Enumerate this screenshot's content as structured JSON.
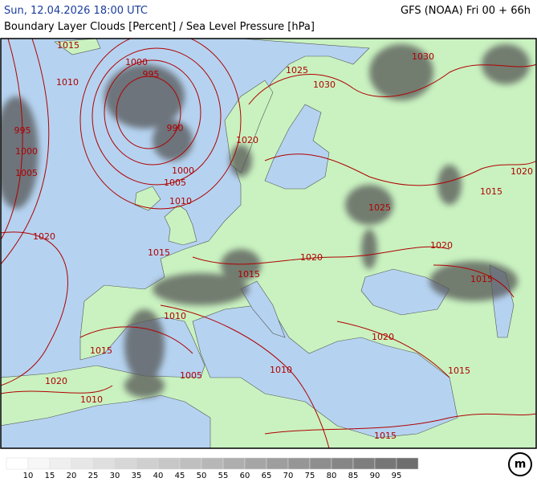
{
  "header": {
    "time": "Sun, 12.04.2026 18:00 UTC",
    "model": "GFS (NOAA) Fri 00 + 66h",
    "subtitle": "Boundary Layer Clouds [Percent] / Sea Level Pressure [hPa]"
  },
  "isobar_labels": [
    "1015",
    "1010",
    "1000",
    "995",
    "990",
    "995",
    "1000",
    "1005",
    "1000",
    "1005",
    "1010",
    "1020",
    "1015",
    "1020",
    "1025",
    "1030",
    "1030",
    "1020",
    "1015",
    "1025",
    "1020",
    "1020",
    "1015",
    "1015",
    "1010",
    "1015",
    "1020",
    "1010",
    "1005",
    "1015",
    "1020",
    "1010",
    "1015"
  ],
  "legend": {
    "labels": [
      10,
      15,
      20,
      25,
      30,
      35,
      40,
      45,
      50,
      55,
      60,
      65,
      70,
      75,
      80,
      85,
      90,
      95
    ]
  }
}
